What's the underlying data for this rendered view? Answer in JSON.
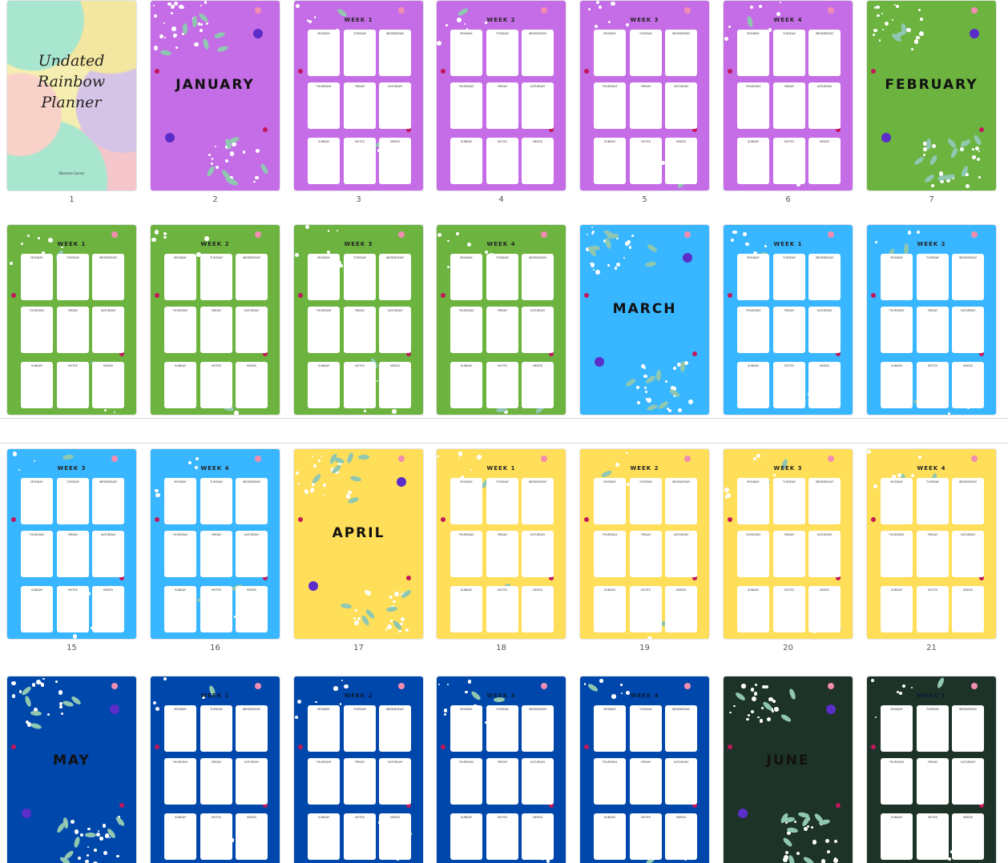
{
  "days": [
    "MONDAY",
    "TUESDAY",
    "WEDNESDAY",
    "THURSDAY",
    "FRIDAY",
    "SATURDAY",
    "SUNDAY",
    "NOTES",
    "NEEDS"
  ],
  "pages": [
    {
      "number": "1",
      "kind": "cover",
      "title": "Undated Rainbow Planner",
      "subtitle": "Planners Corner"
    },
    {
      "number": "2",
      "kind": "month",
      "title": "JANUARY",
      "color": "#c56de6"
    },
    {
      "number": "3",
      "kind": "week",
      "title": "WEEK 1",
      "color": "#c56de6"
    },
    {
      "number": "4",
      "kind": "week",
      "title": "WEEK 2",
      "color": "#c56de6"
    },
    {
      "number": "5",
      "kind": "week",
      "title": "WEEK 3",
      "color": "#c56de6"
    },
    {
      "number": "6",
      "kind": "week",
      "title": "WEEK 4",
      "color": "#c56de6"
    },
    {
      "number": "7",
      "kind": "month",
      "title": "FEBRUARY",
      "color": "#6cb33f"
    },
    {
      "kind": "week",
      "title": "WEEK 1",
      "color": "#6cb33f"
    },
    {
      "kind": "week",
      "title": "WEEK 2",
      "color": "#6cb33f"
    },
    {
      "kind": "week",
      "title": "WEEK 3",
      "color": "#6cb33f"
    },
    {
      "kind": "week",
      "title": "WEEK 4",
      "color": "#6cb33f"
    },
    {
      "kind": "month",
      "title": "MARCH",
      "color": "#38b6ff"
    },
    {
      "kind": "week",
      "title": "WEEK 1",
      "color": "#38b6ff"
    },
    {
      "kind": "week",
      "title": "WEEK 2",
      "color": "#38b6ff"
    },
    {
      "number": "15",
      "kind": "week",
      "title": "WEEK 3",
      "color": "#38b6ff"
    },
    {
      "number": "16",
      "kind": "week",
      "title": "WEEK 4",
      "color": "#38b6ff"
    },
    {
      "number": "17",
      "kind": "month",
      "title": "APRIL",
      "color": "#ffde59"
    },
    {
      "number": "18",
      "kind": "week",
      "title": "WEEK 1",
      "color": "#ffde59"
    },
    {
      "number": "19",
      "kind": "week",
      "title": "WEEK 2",
      "color": "#ffde59"
    },
    {
      "number": "20",
      "kind": "week",
      "title": "WEEK 3",
      "color": "#ffde59"
    },
    {
      "number": "21",
      "kind": "week",
      "title": "WEEK 4",
      "color": "#ffde59"
    },
    {
      "kind": "month",
      "title": "MAY",
      "color": "#0047ab"
    },
    {
      "kind": "week",
      "title": "WEEK 1",
      "color": "#0047ab"
    },
    {
      "kind": "week",
      "title": "WEEK 2",
      "color": "#0047ab"
    },
    {
      "kind": "week",
      "title": "WEEK 3",
      "color": "#0047ab"
    },
    {
      "kind": "week",
      "title": "WEEK 4",
      "color": "#0047ab"
    },
    {
      "kind": "month",
      "title": "JUNE",
      "color": "#1e3328"
    },
    {
      "kind": "week",
      "title": "WEEK 1",
      "color": "#1e3328"
    }
  ]
}
